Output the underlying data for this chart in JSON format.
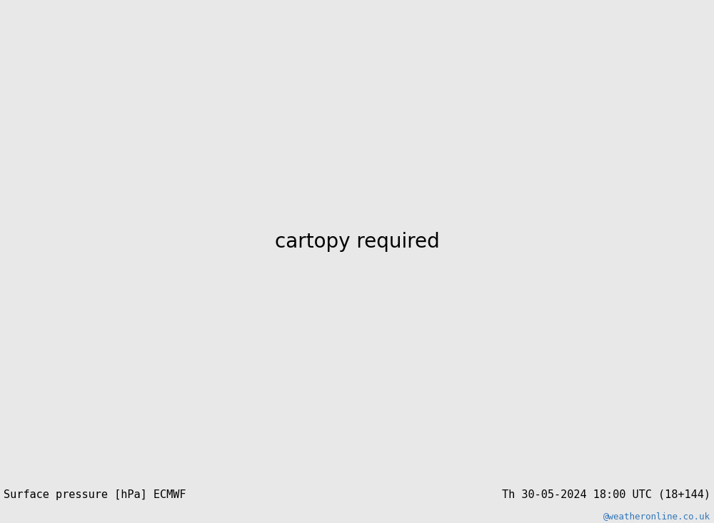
{
  "title_left": "Surface pressure [hPa] ECMWF",
  "title_right": "Th 30-05-2024 18:00 UTC (18+144)",
  "watermark": "@weatheronline.co.uk",
  "bg_color": "#e8e8e8",
  "ocean_color": "#e8e8e8",
  "land_green": "#b8e0a0",
  "land_gray": "#b0b0b0",
  "isobar_red": "#dd0000",
  "isobar_black": "#000000",
  "isobar_blue": "#0000cc",
  "border_color": "#555555",
  "grid_color": "#888888",
  "label_fontsize": 9,
  "title_fontsize": 11,
  "watermark_color": "#3377bb",
  "figsize": [
    10.0,
    7.33
  ],
  "dpi": 100,
  "map_extent": [
    -175,
    -45,
    10,
    85
  ],
  "proj_lon0": -100,
  "proj_lat0": 50
}
